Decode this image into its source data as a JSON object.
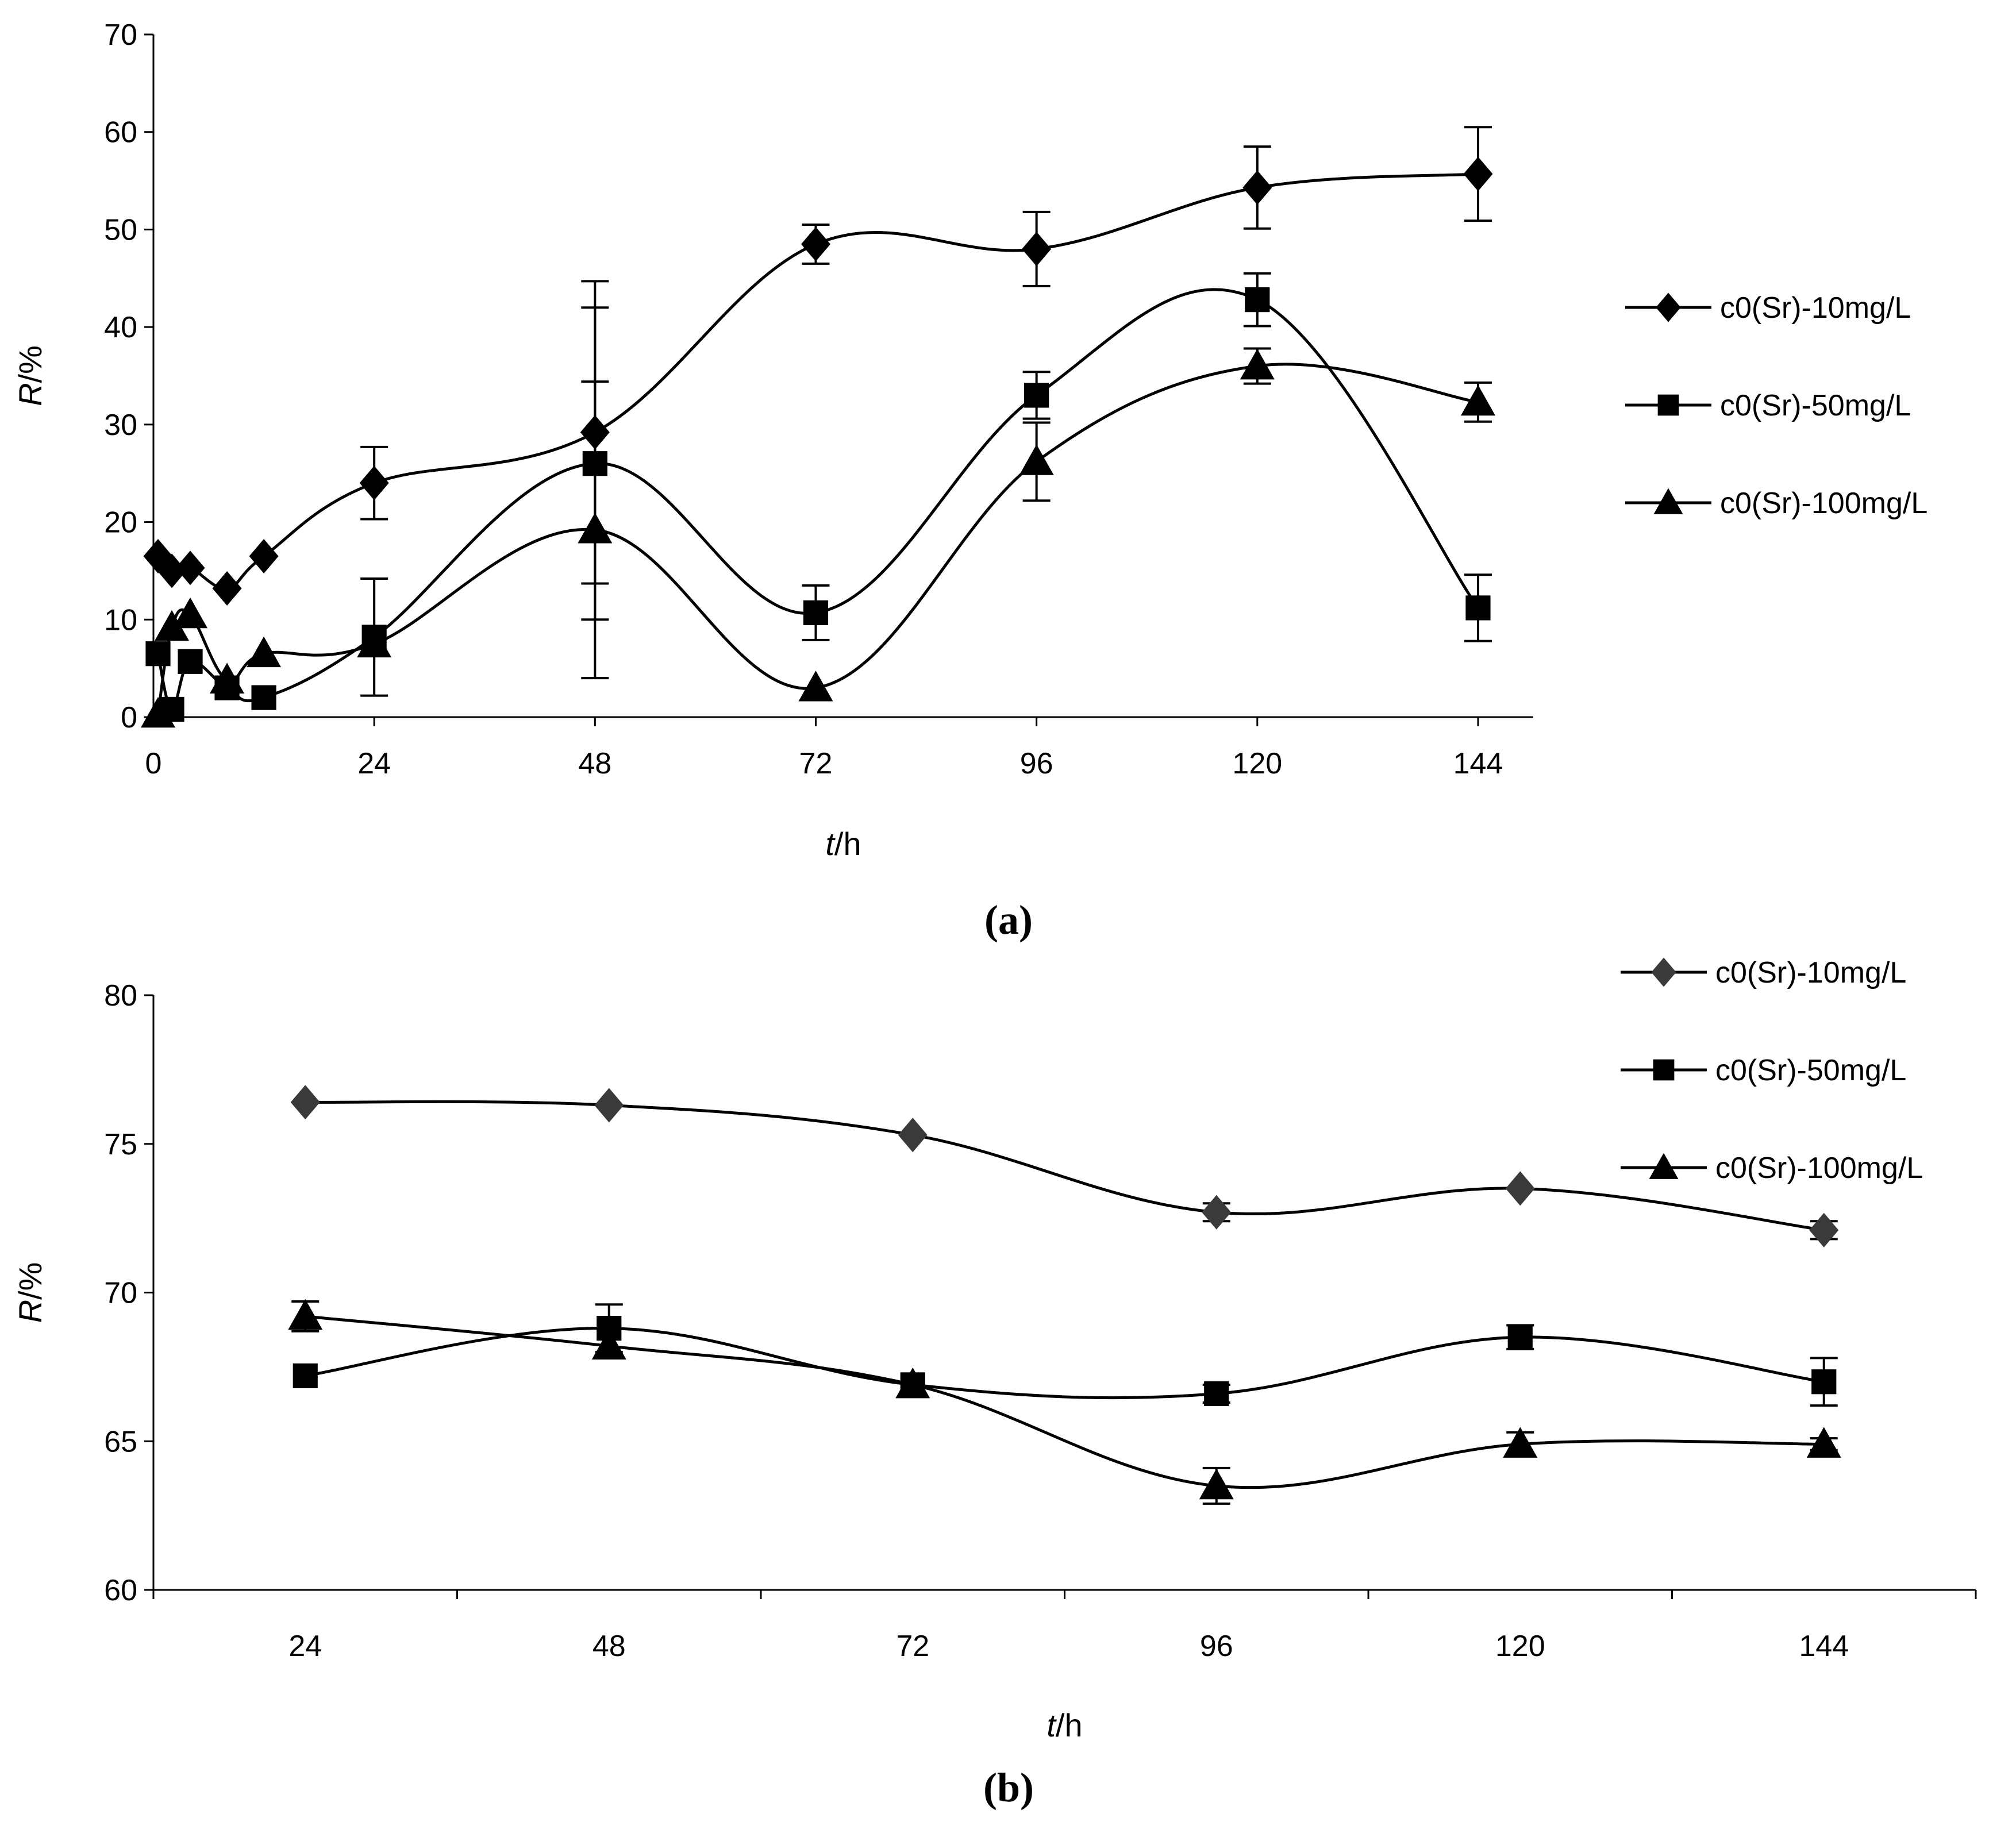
{
  "chart_data": [
    {
      "type": "line",
      "panel_label": "(a)",
      "title": "",
      "xlabel_italic": "t",
      "xlabel_unit": "/h",
      "ylabel_italic": "R",
      "ylabel_unit": "/%",
      "xlim": [
        0,
        150
      ],
      "ylim": [
        0,
        70
      ],
      "xticks": [
        0,
        24,
        48,
        72,
        96,
        120,
        144
      ],
      "yticks": [
        0,
        10,
        20,
        30,
        40,
        50,
        60,
        70
      ],
      "grid": false,
      "legend_position": "right",
      "series": [
        {
          "name": "c0(Sr)-10mg/L",
          "marker": "diamond",
          "color": "#000000",
          "x": [
            0.5,
            2,
            4,
            8,
            12,
            24,
            48,
            72,
            96,
            120,
            144
          ],
          "y": [
            16.5,
            15,
            15.3,
            13.2,
            16.5,
            24,
            29.2,
            48.5,
            48,
            54.3,
            55.7
          ],
          "err": [
            0,
            0,
            0,
            0,
            0,
            3.7,
            15.5,
            2,
            3.8,
            4.2,
            4.8
          ]
        },
        {
          "name": "c0(Sr)-50mg/L",
          "marker": "square",
          "color": "#000000",
          "x": [
            0.5,
            2,
            4,
            8,
            12,
            24,
            48,
            72,
            96,
            120,
            144
          ],
          "y": [
            6.5,
            0.8,
            5.7,
            3,
            2,
            8.2,
            26,
            10.7,
            33,
            42.8,
            11.2
          ],
          "err": [
            0,
            0,
            0,
            0,
            0,
            6,
            16,
            2.8,
            2.4,
            2.7,
            3.4
          ]
        },
        {
          "name": "c0(Sr)-100mg/L",
          "marker": "triangle",
          "color": "#000000",
          "x": [
            0.5,
            2,
            4,
            8,
            12,
            24,
            48,
            72,
            96,
            120,
            144
          ],
          "y": [
            0.3,
            9.2,
            10.5,
            3.8,
            6.5,
            7.5,
            19.2,
            3,
            26.2,
            36,
            32.3
          ],
          "err": [
            0,
            0,
            0,
            0,
            0,
            0,
            15.2,
            0,
            4,
            1.8,
            2
          ]
        }
      ]
    },
    {
      "type": "line",
      "panel_label": "(b)",
      "title": "",
      "xlabel_italic": "t",
      "xlabel_unit": "/h",
      "ylabel_italic": "R",
      "ylabel_unit": "/%",
      "xlim": [
        12,
        156
      ],
      "ylim": [
        60,
        80
      ],
      "xticks": [
        24,
        48,
        72,
        96,
        120,
        144
      ],
      "yticks": [
        60,
        65,
        70,
        75,
        80
      ],
      "grid": false,
      "legend_position": "top-right",
      "series": [
        {
          "name": "c0(Sr)-10mg/L",
          "marker": "diamond",
          "color": "#3a3a3a",
          "x": [
            24,
            48,
            72,
            96,
            120,
            144
          ],
          "y": [
            76.4,
            76.3,
            75.3,
            72.7,
            73.5,
            72.1
          ],
          "err": [
            0,
            0,
            0,
            0.3,
            0,
            0.3
          ]
        },
        {
          "name": "c0(Sr)-50mg/L",
          "marker": "square",
          "color": "#000000",
          "x": [
            24,
            48,
            72,
            96,
            120,
            144
          ],
          "y": [
            67.2,
            68.8,
            66.9,
            66.6,
            68.5,
            67.0
          ],
          "err": [
            0,
            0.8,
            0,
            0.3,
            0.4,
            0.8
          ]
        },
        {
          "name": "c0(Sr)-100mg/L",
          "marker": "triangle",
          "color": "#000000",
          "x": [
            24,
            48,
            72,
            96,
            120,
            144
          ],
          "y": [
            69.2,
            68.2,
            66.9,
            63.5,
            64.9,
            64.9
          ],
          "err": [
            0.5,
            0,
            0,
            0.6,
            0.4,
            0.2
          ]
        }
      ]
    }
  ]
}
